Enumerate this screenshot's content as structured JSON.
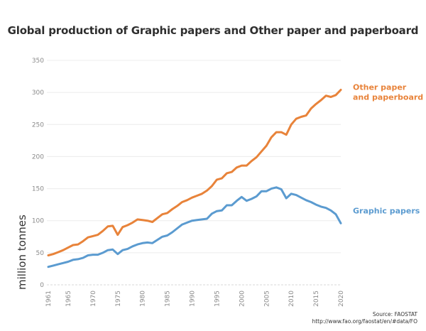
{
  "chart_data": {
    "type": "line",
    "title": "Global production of Graphic papers and Other paper and paperboard",
    "xlabel": "",
    "ylabel": "million tonnes",
    "ylim": [
      0,
      350
    ],
    "yticks": [
      0,
      50,
      100,
      150,
      200,
      250,
      300,
      350
    ],
    "xlim": [
      1961,
      2020
    ],
    "xticks": [
      1961,
      1965,
      1970,
      1975,
      1980,
      1985,
      1990,
      1995,
      2000,
      2005,
      2010,
      2015,
      2020
    ],
    "grid": true,
    "legend_placement": "right, inline at line ends",
    "x": [
      1961,
      1962,
      1963,
      1964,
      1965,
      1966,
      1967,
      1968,
      1969,
      1970,
      1971,
      1972,
      1973,
      1974,
      1975,
      1976,
      1977,
      1978,
      1979,
      1980,
      1981,
      1982,
      1983,
      1984,
      1985,
      1986,
      1987,
      1988,
      1989,
      1990,
      1991,
      1992,
      1993,
      1994,
      1995,
      1996,
      1997,
      1998,
      1999,
      2000,
      2001,
      2002,
      2003,
      2004,
      2005,
      2006,
      2007,
      2008,
      2009,
      2010,
      2011,
      2012,
      2013,
      2014,
      2015,
      2016,
      2017,
      2018,
      2019,
      2020
    ],
    "series": [
      {
        "name": "Other paper and paperboard",
        "legend_lines": [
          "Other paper",
          "and paperboard"
        ],
        "color": "#e8833a",
        "values": [
          46,
          48,
          51,
          54,
          58,
          62,
          63,
          68,
          74,
          76,
          78,
          84,
          91,
          92,
          78,
          90,
          93,
          97,
          102,
          101,
          100,
          98,
          104,
          110,
          112,
          118,
          123,
          129,
          132,
          136,
          139,
          142,
          147,
          154,
          164,
          166,
          174,
          176,
          183,
          186,
          186,
          193,
          199,
          208,
          217,
          230,
          238,
          238,
          234,
          250,
          259,
          262,
          264,
          275,
          282,
          288,
          295,
          293,
          296,
          304
        ]
      },
      {
        "name": "Graphic papers",
        "legend_lines": [
          "Graphic papers"
        ],
        "color": "#5b9bd0",
        "values": [
          28,
          30,
          32,
          34,
          36,
          39,
          40,
          42,
          46,
          47,
          47,
          50,
          54,
          55,
          48,
          54,
          56,
          60,
          63,
          65,
          66,
          65,
          70,
          75,
          77,
          82,
          88,
          94,
          97,
          100,
          101,
          102,
          103,
          111,
          115,
          116,
          124,
          124,
          131,
          137,
          131,
          134,
          138,
          146,
          146,
          150,
          152,
          149,
          135,
          142,
          140,
          136,
          132,
          129,
          125,
          122,
          120,
          116,
          110,
          96
        ]
      }
    ],
    "source_lines": [
      "Source: FAOSTAT",
      "http://www.fao.org/faostat/en/#data/FO"
    ]
  }
}
